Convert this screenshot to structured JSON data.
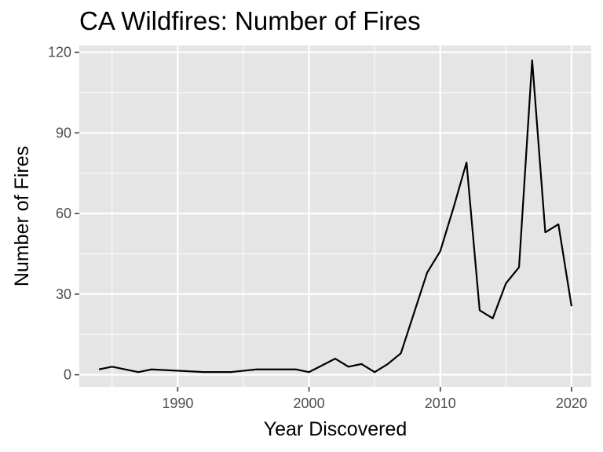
{
  "chart_data": {
    "type": "line",
    "title": "CA Wildfires: Number of Fires",
    "xlabel": "Year Discovered",
    "ylabel": "Number of Fires",
    "xlim": [
      1982.5,
      2021.5
    ],
    "ylim": [
      -4.5,
      122.5
    ],
    "x_ticks": [
      1990,
      2000,
      2010,
      2020
    ],
    "y_ticks": [
      0,
      30,
      60,
      90,
      120
    ],
    "grid": true,
    "legend": "none",
    "line_color": "#000000",
    "panel_color": "#e5e5e5",
    "grid_color": "#ffffff",
    "series": [
      {
        "x": [
          1984,
          1985,
          1987,
          1988,
          1992,
          1994,
          1996,
          1997,
          1998,
          1999,
          2000,
          2001,
          2002,
          2003,
          2004,
          2005,
          2006,
          2007,
          2008,
          2009,
          2010,
          2011,
          2012,
          2013,
          2014,
          2015,
          2016,
          2017,
          2018,
          2019,
          2020
        ],
        "y": [
          2,
          3,
          1,
          2,
          1,
          1,
          2,
          2,
          2,
          2,
          1,
          3.5,
          6,
          3,
          4,
          1,
          4,
          8,
          23,
          38,
          46,
          62,
          79,
          24,
          21,
          34,
          40,
          117,
          53,
          56,
          25.5
        ]
      }
    ]
  }
}
